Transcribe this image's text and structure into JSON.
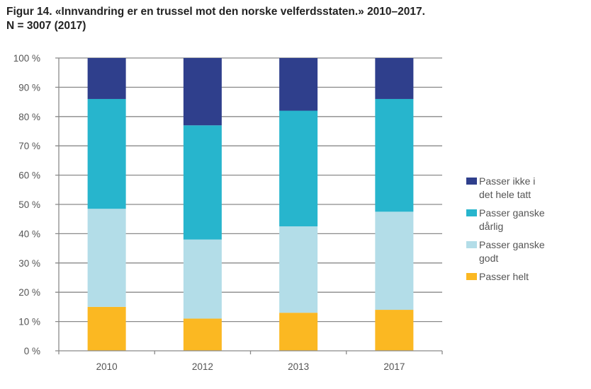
{
  "title": {
    "line1": "Figur 14. «Innvandring er en trussel mot den norske velferdsstaten.» 2010–2017.",
    "line2": "N = 3007 (2017)"
  },
  "chart_data": {
    "type": "bar",
    "stacked": true,
    "title": "Figur 14. «Innvandring er en trussel mot den norske velferdsstaten.» 2010–2017. N = 3007 (2017)",
    "xlabel": "",
    "ylabel": "",
    "categories": [
      "2010",
      "2012",
      "2013",
      "2017"
    ],
    "ylim": [
      0,
      100
    ],
    "yticks": [
      0,
      10,
      20,
      30,
      40,
      50,
      60,
      70,
      80,
      90,
      100
    ],
    "ytick_labels": [
      "0 %",
      "10 %",
      "20 %",
      "30 %",
      "40 %",
      "50 %",
      "60 %",
      "70 %",
      "80 %",
      "90 %",
      "100 %"
    ],
    "grid": true,
    "legend_position": "right",
    "series": [
      {
        "name": "Passer helt",
        "color": "#fbb822",
        "values": [
          15,
          11,
          13,
          14
        ]
      },
      {
        "name": "Passer ganske godt",
        "color": "#b3dde8",
        "values": [
          33.5,
          27,
          29.5,
          33.5
        ]
      },
      {
        "name": "Passer ganske dårlig",
        "color": "#27b5cd",
        "values": [
          37.5,
          39,
          39.5,
          38.5
        ]
      },
      {
        "name": "Passer ikke i det hele tatt",
        "color": "#2f3f8c",
        "values": [
          14,
          23,
          18,
          14
        ]
      }
    ]
  },
  "legend": {
    "items": [
      {
        "line1": "Passer ikke i",
        "line2": "det hele tatt",
        "color": "#2f3f8c"
      },
      {
        "line1": "Passer ganske",
        "line2": "dårlig",
        "color": "#27b5cd"
      },
      {
        "line1": "Passer ganske",
        "line2": "godt",
        "color": "#b3dde8"
      },
      {
        "line1": "Passer helt",
        "line2": "",
        "color": "#fbb822"
      }
    ]
  }
}
